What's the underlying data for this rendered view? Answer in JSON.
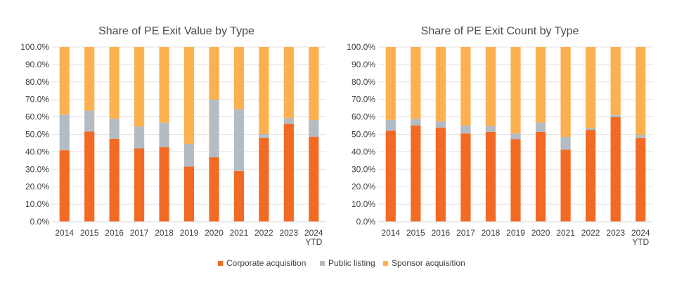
{
  "colors": {
    "corporate": "#f26a24",
    "public": "#b3bcc3",
    "sponsor": "#fdb04f",
    "grid": "#e1e1e1",
    "text": "#404040",
    "title": "#4a4a4a"
  },
  "legend": {
    "placement": "bottom-center",
    "items": [
      {
        "key": "corporate",
        "label": "Corporate acquisition"
      },
      {
        "key": "public",
        "label": "Public listing"
      },
      {
        "key": "sponsor",
        "label": "Sponsor acquisition"
      }
    ]
  },
  "chart_data": [
    {
      "type": "bar",
      "stacked": true,
      "title": "Share of PE Exit Value by Type",
      "categories": [
        "2014",
        "2015",
        "2016",
        "2017",
        "2018",
        "2019",
        "2020",
        "2021",
        "2022",
        "2023",
        "2024 YTD"
      ],
      "ylim": [
        0,
        100
      ],
      "ytick_step": 10,
      "y_format": "percent_1dp",
      "grid": true,
      "series": [
        {
          "name": "Corporate acquisition",
          "key": "corporate",
          "values": [
            40.9,
            51.6,
            47.4,
            42.0,
            42.7,
            31.6,
            36.9,
            29.0,
            47.9,
            56.0,
            48.6
          ]
        },
        {
          "name": "Public listing",
          "key": "public",
          "values": [
            20.5,
            12.0,
            11.5,
            12.5,
            14.0,
            13.0,
            33.0,
            35.5,
            2.3,
            3.2,
            9.6
          ]
        },
        {
          "name": "Sponsor acquisition",
          "key": "sponsor",
          "values": [
            38.6,
            36.4,
            41.1,
            45.5,
            43.3,
            55.4,
            30.1,
            35.5,
            49.8,
            40.8,
            41.8
          ]
        }
      ]
    },
    {
      "type": "bar",
      "stacked": true,
      "title": "Share of PE Exit Count by Type",
      "categories": [
        "2014",
        "2015",
        "2016",
        "2017",
        "2018",
        "2019",
        "2020",
        "2021",
        "2022",
        "2023",
        "2024 YTD"
      ],
      "ylim": [
        0,
        100
      ],
      "ytick_step": 10,
      "y_format": "percent_1dp",
      "grid": true,
      "series": [
        {
          "name": "Corporate acquisition",
          "key": "corporate",
          "values": [
            52.1,
            55.0,
            53.8,
            50.5,
            51.4,
            47.2,
            51.4,
            41.2,
            52.6,
            59.9,
            47.9
          ]
        },
        {
          "name": "Public listing",
          "key": "public",
          "values": [
            6.2,
            3.8,
            3.6,
            4.5,
            3.4,
            3.3,
            5.4,
            7.4,
            1.2,
            1.3,
            1.9
          ]
        },
        {
          "name": "Sponsor acquisition",
          "key": "sponsor",
          "values": [
            41.7,
            41.2,
            42.6,
            45.0,
            45.2,
            49.5,
            43.2,
            51.4,
            46.2,
            38.8,
            50.2
          ]
        }
      ]
    }
  ]
}
